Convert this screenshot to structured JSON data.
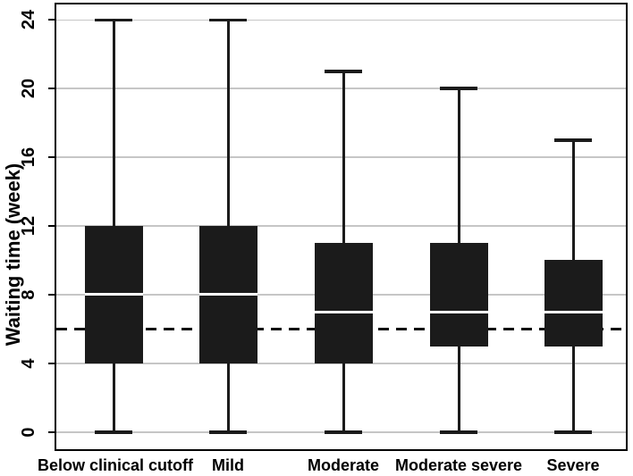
{
  "chart_data": {
    "type": "box",
    "title": "",
    "ylabel": "Waiting time (week)",
    "xlabel": "",
    "categories": [
      "Below clinical cutoff",
      "Mild",
      "Moderate",
      "Moderate severe",
      "Severe"
    ],
    "yticks": [
      0,
      4,
      8,
      12,
      16,
      20,
      24
    ],
    "ylim": [
      -1,
      24.9
    ],
    "grid": true,
    "legend": "none",
    "reference_line": {
      "y": 6,
      "style": "dashed"
    },
    "boxes": [
      {
        "category": "Below clinical cutoff",
        "whisker_low": 0,
        "q1": 4,
        "median": 8,
        "q3": 12,
        "whisker_high": 24
      },
      {
        "category": "Mild",
        "whisker_low": 0,
        "q1": 4,
        "median": 8,
        "q3": 12,
        "whisker_high": 24
      },
      {
        "category": "Moderate",
        "whisker_low": 0,
        "q1": 4,
        "median": 7,
        "q3": 11,
        "whisker_high": 21
      },
      {
        "category": "Moderate severe",
        "whisker_low": 0,
        "q1": 5,
        "median": 7,
        "q3": 11,
        "whisker_high": 20
      },
      {
        "category": "Severe",
        "whisker_low": 0,
        "q1": 5,
        "median": 7,
        "q3": 10,
        "whisker_high": 17
      }
    ],
    "colors": {
      "box_fill": "#1b1b1b",
      "median_line": "#ffffff",
      "whisker": "#1b1b1b",
      "grid_line": "#c6c6c6",
      "axis": "#000000",
      "reference_line": "#111111",
      "text": "#000000",
      "background": "#ffffff"
    }
  }
}
